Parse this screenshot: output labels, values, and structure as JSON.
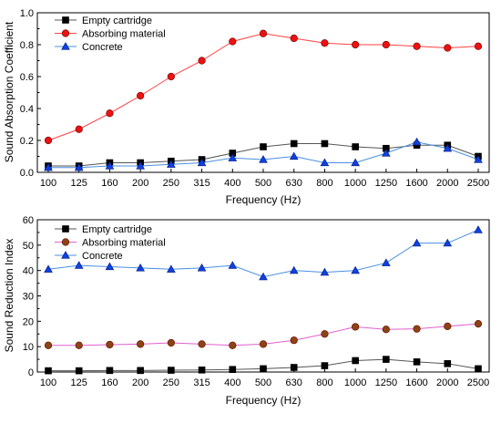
{
  "chart_data": [
    {
      "type": "line",
      "xlabel": "Frequency (Hz)",
      "ylabel": "Sound Absorption Coefficient",
      "categories": [
        "100",
        "125",
        "160",
        "200",
        "250",
        "315",
        "400",
        "500",
        "630",
        "800",
        "1000",
        "1250",
        "1600",
        "2000",
        "2500"
      ],
      "ylim": [
        0,
        1.0
      ],
      "yticks": [
        "0.0",
        "0.2",
        "0.4",
        "0.6",
        "0.8",
        "1.0"
      ],
      "legend_position": "top-left",
      "grid": false,
      "series": [
        {
          "name": "Empty cartridge",
          "marker": "square",
          "color": "#555555",
          "marker_color": "#000000",
          "values": [
            0.04,
            0.04,
            0.06,
            0.06,
            0.07,
            0.08,
            0.12,
            0.16,
            0.18,
            0.18,
            0.16,
            0.15,
            0.17,
            0.17,
            0.1
          ]
        },
        {
          "name": "Absorbing material",
          "marker": "circle",
          "color": "#ff4040",
          "marker_color": "#ee1111",
          "values": [
            0.2,
            0.27,
            0.37,
            0.48,
            0.6,
            0.7,
            0.82,
            0.87,
            0.84,
            0.81,
            0.8,
            0.8,
            0.79,
            0.78,
            0.79
          ]
        },
        {
          "name": "Concrete",
          "marker": "triangle",
          "color": "#4a90e2",
          "marker_color": "#1040e0",
          "values": [
            0.03,
            0.03,
            0.04,
            0.04,
            0.05,
            0.06,
            0.09,
            0.08,
            0.1,
            0.06,
            0.06,
            0.12,
            0.19,
            0.15,
            0.08
          ]
        }
      ]
    },
    {
      "type": "line",
      "xlabel": "Frequency (Hz)",
      "ylabel": "Sound Reduction Index",
      "categories": [
        "100",
        "125",
        "160",
        "200",
        "250",
        "315",
        "400",
        "500",
        "630",
        "800",
        "1000",
        "1250",
        "1600",
        "2000",
        "2500"
      ],
      "ylim": [
        0,
        60
      ],
      "yticks": [
        "0",
        "10",
        "20",
        "30",
        "40",
        "50",
        "60"
      ],
      "legend_position": "top-left",
      "grid": false,
      "series": [
        {
          "name": "Empty cartridge",
          "marker": "square",
          "color": "#555555",
          "marker_color": "#000000",
          "values": [
            0.5,
            0.5,
            0.6,
            0.6,
            0.7,
            0.8,
            1.0,
            1.3,
            1.8,
            2.5,
            4.5,
            5.0,
            4.0,
            3.3,
            1.3
          ]
        },
        {
          "name": "Absorbing material",
          "marker": "circle",
          "color": "#e060d0",
          "marker_color": "#8b4513",
          "values": [
            10.5,
            10.5,
            10.8,
            11.0,
            11.5,
            11.0,
            10.5,
            11.0,
            12.5,
            15.0,
            17.8,
            16.8,
            17.0,
            18.0,
            19.0
          ]
        },
        {
          "name": "Concrete",
          "marker": "triangle",
          "color": "#4a90e2",
          "marker_color": "#1040e0",
          "values": [
            40.5,
            42.0,
            41.5,
            41.0,
            40.5,
            41.0,
            42.0,
            37.5,
            40.0,
            39.3,
            40.0,
            43.0,
            50.8,
            50.8,
            56.0
          ]
        }
      ]
    }
  ]
}
